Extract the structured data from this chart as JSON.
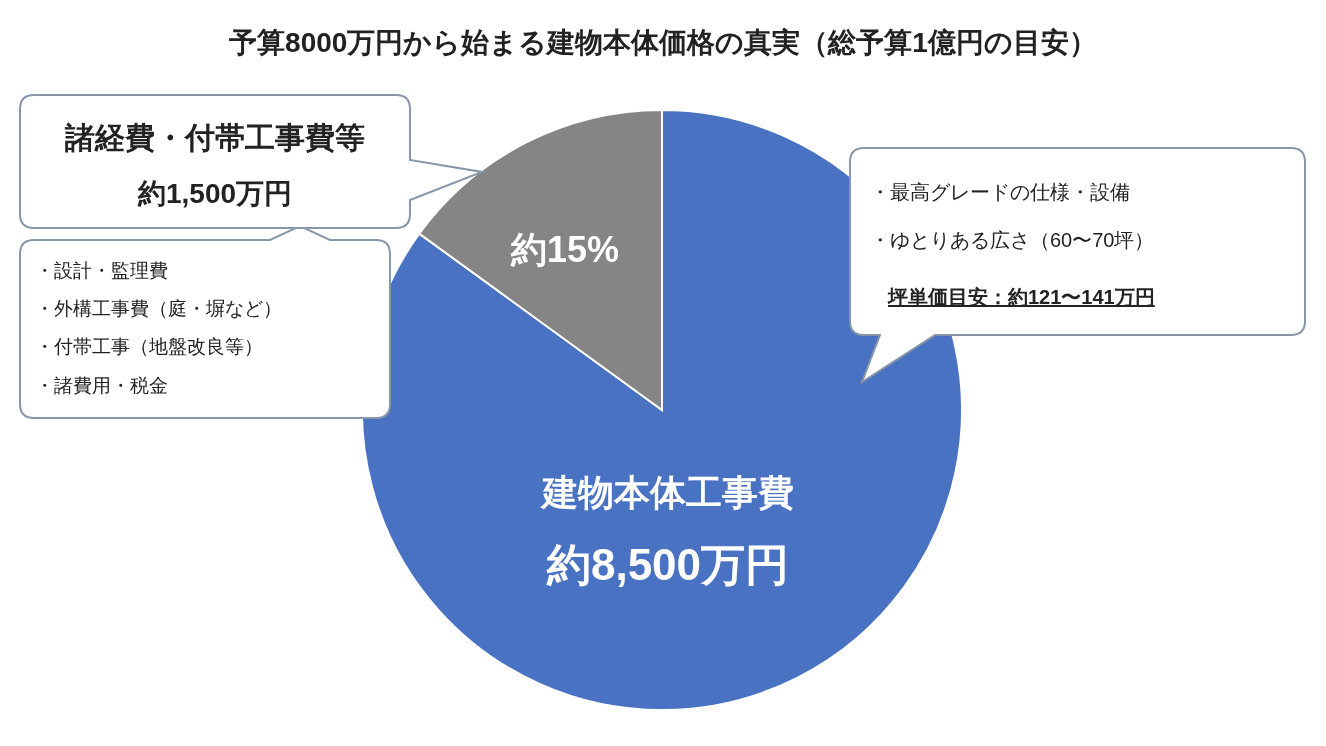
{
  "chart_data": {
    "type": "pie",
    "title": "予算8000万円から始まる建物本体価格の真実（総予算1億円の目安）",
    "categories": [
      "建物本体工事費",
      "諸経費・付帯工事費等"
    ],
    "values": [
      8500,
      1500
    ],
    "colors": [
      "#4a72c2",
      "#858585"
    ],
    "value_labels": [
      "約8,500万円",
      "約1,500万円"
    ],
    "annotations": [
      "約15%",
      "・設計・監理費",
      "・外構工事費（庭・塀など）",
      "・付帯工事（地盤改良等）",
      "・諸費用・税金",
      "・最高グレードの仕様・設備",
      "・ゆとりある広さ（60〜70坪）",
      "坪単価目安：約121〜141万円"
    ]
  }
}
